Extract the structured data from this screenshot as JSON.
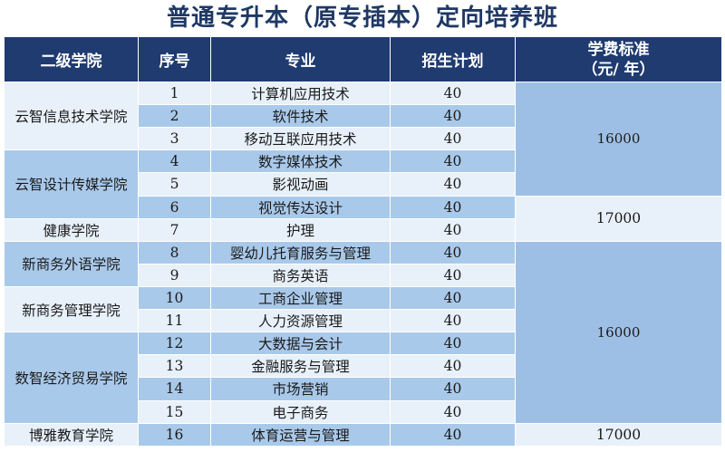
{
  "title": "普通专升本（原专插本）定向培养班",
  "headers": {
    "college": "二级学院",
    "no": "序号",
    "major": "专业",
    "plan": "招生计划",
    "fee_line1": "学费标准",
    "fee_line2": "（元/ 年）"
  },
  "colleges": [
    "云智信息技术学院",
    "云智设计传媒学院",
    "健康学院",
    "新商务外语学院",
    "新商务管理学院",
    "数智经济贸易学院",
    "博雅教育学院"
  ],
  "rows": [
    {
      "no": "1",
      "major": "计算机应用技术",
      "plan": "40"
    },
    {
      "no": "2",
      "major": "软件技术",
      "plan": "40"
    },
    {
      "no": "3",
      "major": "移动互联应用技术",
      "plan": "40"
    },
    {
      "no": "4",
      "major": "数字媒体技术",
      "plan": "40"
    },
    {
      "no": "5",
      "major": "影视动画",
      "plan": "40"
    },
    {
      "no": "6",
      "major": "视觉传达设计",
      "plan": "40"
    },
    {
      "no": "7",
      "major": "护理",
      "plan": "40"
    },
    {
      "no": "8",
      "major": "婴幼儿托育服务与管理",
      "plan": "40"
    },
    {
      "no": "9",
      "major": "商务英语",
      "plan": "40"
    },
    {
      "no": "10",
      "major": "工商企业管理",
      "plan": "40"
    },
    {
      "no": "11",
      "major": "人力资源管理",
      "plan": "40"
    },
    {
      "no": "12",
      "major": "大数据与会计",
      "plan": "40"
    },
    {
      "no": "13",
      "major": "金融服务与管理",
      "plan": "40"
    },
    {
      "no": "14",
      "major": "市场营销",
      "plan": "40"
    },
    {
      "no": "15",
      "major": "电子商务",
      "plan": "40"
    },
    {
      "no": "16",
      "major": "体育运营与管理",
      "plan": "40"
    }
  ],
  "fees": [
    "16000",
    "17000",
    "16000",
    "17000"
  ],
  "colors": {
    "title": "#1f3864",
    "header_bg": "#1f3b70",
    "light_cell": "#e8f1fa",
    "dark_cell": "#a9c9ea",
    "fee_cell": "#9ebfe5"
  }
}
